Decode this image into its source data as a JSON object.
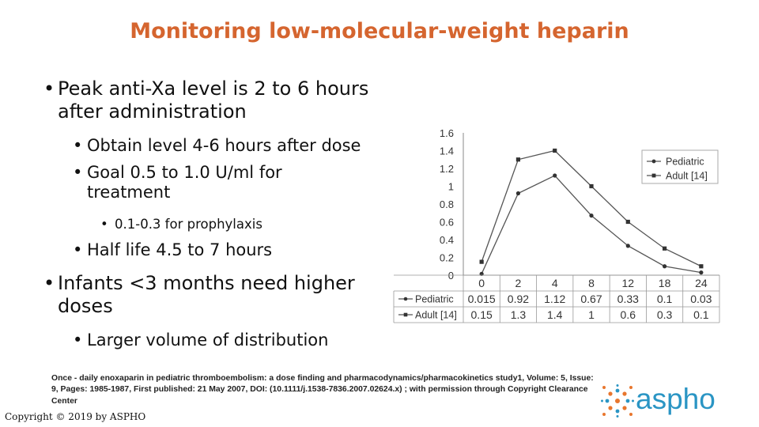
{
  "title": "Monitoring low-molecular-weight heparin",
  "bullets": [
    {
      "level": 1,
      "text": "Peak anti-Xa level is 2 to 6 hours after administration"
    },
    {
      "level": 2,
      "text": "Obtain level 4-6 hours after dose"
    },
    {
      "level": 2,
      "text": "Goal 0.5 to 1.0 U/ml for treatment"
    },
    {
      "level": 3,
      "text": "0.1-0.3 for prophylaxis"
    },
    {
      "level": 2,
      "text": "Half life 4.5 to 7 hours"
    },
    {
      "level": 1,
      "text": "Infants <3 months need higher doses"
    },
    {
      "level": 2,
      "text": "Larger volume of distribution"
    }
  ],
  "chart_data": {
    "type": "line",
    "categories": [
      "0",
      "2",
      "4",
      "8",
      "12",
      "18",
      "24"
    ],
    "y_ticks": [
      "1.6",
      "1.4",
      "1.2",
      "1",
      "0.8",
      "0.6",
      "0.4",
      "0.2",
      "0"
    ],
    "ylim": [
      0,
      1.6
    ],
    "legend_position": "top-right",
    "grid": false,
    "series": [
      {
        "name": "Pediatric",
        "marker": "circle",
        "values": [
          0.015,
          0.92,
          1.12,
          0.67,
          0.33,
          0.1,
          0.03
        ],
        "value_labels": [
          "0.015",
          "0.92",
          "1.12",
          "0.67",
          "0.33",
          "0.1",
          "0.03"
        ]
      },
      {
        "name": "Adult [14]",
        "marker": "square",
        "values": [
          0.15,
          1.3,
          1.4,
          1,
          0.6,
          0.3,
          0.1
        ],
        "value_labels": [
          "0.15",
          "1.3",
          "1.4",
          "1",
          "0.6",
          "0.3",
          "0.1"
        ]
      }
    ]
  },
  "citation": "Once - daily enoxaparin in pediatric thromboembolism: a dose finding and pharmacodynamics/pharmacokinetics study1, Volume: 5, Issue: 9, Pages: 1985-1987, First published: 21 May 2007, DOI: (10.1111/j.1538-7836.2007.02624.x) ; with permission through Copyright Clearance Center",
  "copyright": "Copyright © 2019 by ASPHO",
  "logo": {
    "text": "aspho",
    "icon": "aspho-dots-icon",
    "text_color": "#2a95c4",
    "dot_color": "#e8762d"
  },
  "colors": {
    "title": "#d5652f"
  }
}
